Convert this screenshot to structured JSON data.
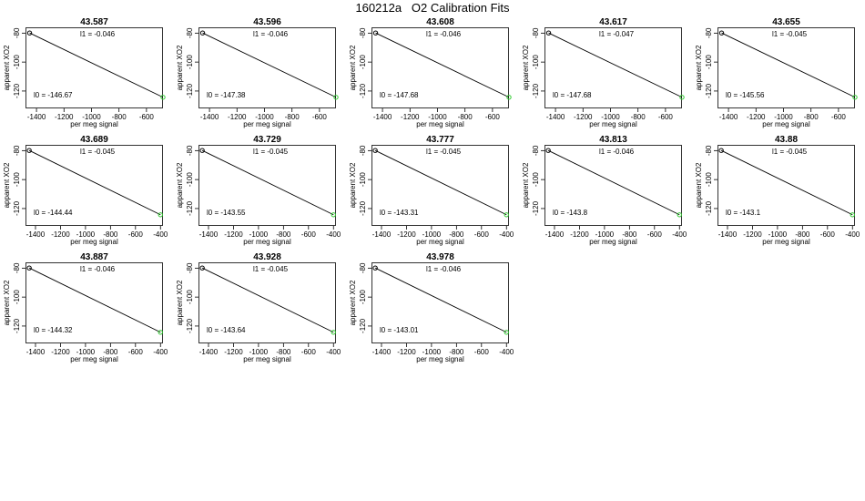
{
  "figure": {
    "title": "160212a   O2 Calibration Fits"
  },
  "chart_data": [
    {
      "type": "scatter",
      "title": "43.587",
      "xlabel": "per meg signal",
      "ylabel": "apparent XO2",
      "xlim": [
        -1480,
        -480
      ],
      "ylim": [
        -132,
        -76
      ],
      "xticks": [
        -1400,
        -1200,
        -1000,
        -800,
        -600
      ],
      "yticks": [
        -80,
        -100,
        -120
      ],
      "points": [
        {
          "x": -1450,
          "y": -79.9,
          "color": "#000000"
        },
        {
          "x": -480,
          "y": -124.3,
          "color": "#33cc33"
        }
      ],
      "fit_line": {
        "x": [
          -1450,
          -480
        ],
        "y": [
          -79.9,
          -124.3
        ]
      },
      "annotations": {
        "l1": "l1 =  -0.046",
        "l0": "l0 =  -146.67"
      }
    },
    {
      "type": "scatter",
      "title": "43.596",
      "xlabel": "per meg signal",
      "ylabel": "apparent XO2",
      "xlim": [
        -1480,
        -480
      ],
      "ylim": [
        -132,
        -76
      ],
      "xticks": [
        -1400,
        -1200,
        -1000,
        -800,
        -600
      ],
      "yticks": [
        -80,
        -100,
        -120
      ],
      "points": [
        {
          "x": -1450,
          "y": -79.9,
          "color": "#000000"
        },
        {
          "x": -480,
          "y": -124.3,
          "color": "#33cc33"
        }
      ],
      "fit_line": {
        "x": [
          -1450,
          -480
        ],
        "y": [
          -79.9,
          -124.3
        ]
      },
      "annotations": {
        "l1": "l1 =  -0.046",
        "l0": "l0 =  -147.38"
      }
    },
    {
      "type": "scatter",
      "title": "43.608",
      "xlabel": "per meg signal",
      "ylabel": "apparent XO2",
      "xlim": [
        -1480,
        -480
      ],
      "ylim": [
        -132,
        -76
      ],
      "xticks": [
        -1400,
        -1200,
        -1000,
        -800,
        -600
      ],
      "yticks": [
        -80,
        -100,
        -120
      ],
      "points": [
        {
          "x": -1450,
          "y": -79.9,
          "color": "#000000"
        },
        {
          "x": -480,
          "y": -124.3,
          "color": "#33cc33"
        }
      ],
      "fit_line": {
        "x": [
          -1450,
          -480
        ],
        "y": [
          -79.9,
          -124.3
        ]
      },
      "annotations": {
        "l1": "l1 =  -0.046",
        "l0": "l0 =  -147.68"
      }
    },
    {
      "type": "scatter",
      "title": "43.617",
      "xlabel": "per meg signal",
      "ylabel": "apparent XO2",
      "xlim": [
        -1480,
        -480
      ],
      "ylim": [
        -132,
        -76
      ],
      "xticks": [
        -1400,
        -1200,
        -1000,
        -800,
        -600
      ],
      "yticks": [
        -80,
        -100,
        -120
      ],
      "points": [
        {
          "x": -1450,
          "y": -79.9,
          "color": "#000000"
        },
        {
          "x": -480,
          "y": -124.3,
          "color": "#33cc33"
        }
      ],
      "fit_line": {
        "x": [
          -1450,
          -480
        ],
        "y": [
          -79.9,
          -124.3
        ]
      },
      "annotations": {
        "l1": "l1 =  -0.047",
        "l0": "l0 =  -147.68"
      }
    },
    {
      "type": "scatter",
      "title": "43.655",
      "xlabel": "per meg signal",
      "ylabel": "apparent XO2",
      "xlim": [
        -1480,
        -480
      ],
      "ylim": [
        -132,
        -76
      ],
      "xticks": [
        -1400,
        -1200,
        -1000,
        -800,
        -600
      ],
      "yticks": [
        -80,
        -100,
        -120
      ],
      "points": [
        {
          "x": -1450,
          "y": -79.9,
          "color": "#000000"
        },
        {
          "x": -480,
          "y": -124.3,
          "color": "#33cc33"
        }
      ],
      "fit_line": {
        "x": [
          -1450,
          -480
        ],
        "y": [
          -79.9,
          -124.3
        ]
      },
      "annotations": {
        "l1": "l1 =  -0.045",
        "l0": "l0 =  -145.56"
      }
    },
    {
      "type": "scatter",
      "title": "43.689",
      "xlabel": "per meg signal",
      "ylabel": "apparent XO2",
      "xlim": [
        -1480,
        -380
      ],
      "ylim": [
        -132,
        -76
      ],
      "xticks": [
        -1400,
        -1200,
        -1000,
        -800,
        -600,
        -400
      ],
      "yticks": [
        -80,
        -100,
        -120
      ],
      "points": [
        {
          "x": -1450,
          "y": -79.9,
          "color": "#000000"
        },
        {
          "x": -400,
          "y": -124.3,
          "color": "#33cc33"
        }
      ],
      "fit_line": {
        "x": [
          -1450,
          -400
        ],
        "y": [
          -79.9,
          -124.3
        ]
      },
      "annotations": {
        "l1": "l1 =  -0.045",
        "l0": "l0 =  -144.44"
      }
    },
    {
      "type": "scatter",
      "title": "43.729",
      "xlabel": "per meg signal",
      "ylabel": "apparent XO2",
      "xlim": [
        -1480,
        -380
      ],
      "ylim": [
        -132,
        -76
      ],
      "xticks": [
        -1400,
        -1200,
        -1000,
        -800,
        -600,
        -400
      ],
      "yticks": [
        -80,
        -100,
        -120
      ],
      "points": [
        {
          "x": -1450,
          "y": -79.9,
          "color": "#000000"
        },
        {
          "x": -400,
          "y": -124.3,
          "color": "#33cc33"
        }
      ],
      "fit_line": {
        "x": [
          -1450,
          -400
        ],
        "y": [
          -79.9,
          -124.3
        ]
      },
      "annotations": {
        "l1": "l1 =  -0.045",
        "l0": "l0 =  -143.55"
      }
    },
    {
      "type": "scatter",
      "title": "43.777",
      "xlabel": "per meg signal",
      "ylabel": "apparent XO2",
      "xlim": [
        -1480,
        -380
      ],
      "ylim": [
        -132,
        -76
      ],
      "xticks": [
        -1400,
        -1200,
        -1000,
        -800,
        -600,
        -400
      ],
      "yticks": [
        -80,
        -100,
        -120
      ],
      "points": [
        {
          "x": -1450,
          "y": -79.9,
          "color": "#000000"
        },
        {
          "x": -400,
          "y": -124.3,
          "color": "#33cc33"
        }
      ],
      "fit_line": {
        "x": [
          -1450,
          -400
        ],
        "y": [
          -79.9,
          -124.3
        ]
      },
      "annotations": {
        "l1": "l1 =  -0.045",
        "l0": "l0 =  -143.31"
      }
    },
    {
      "type": "scatter",
      "title": "43.813",
      "xlabel": "per meg signal",
      "ylabel": "apparent XO2",
      "xlim": [
        -1480,
        -380
      ],
      "ylim": [
        -132,
        -76
      ],
      "xticks": [
        -1400,
        -1200,
        -1000,
        -800,
        -600,
        -400
      ],
      "yticks": [
        -80,
        -100,
        -120
      ],
      "points": [
        {
          "x": -1450,
          "y": -79.9,
          "color": "#000000"
        },
        {
          "x": -400,
          "y": -124.3,
          "color": "#33cc33"
        }
      ],
      "fit_line": {
        "x": [
          -1450,
          -400
        ],
        "y": [
          -79.9,
          -124.3
        ]
      },
      "annotations": {
        "l1": "l1 =  -0.046",
        "l0": "l0 =  -143.8"
      }
    },
    {
      "type": "scatter",
      "title": "43.88",
      "xlabel": "per meg signal",
      "ylabel": "apparent XO2",
      "xlim": [
        -1480,
        -380
      ],
      "ylim": [
        -132,
        -76
      ],
      "xticks": [
        -1400,
        -1200,
        -1000,
        -800,
        -600,
        -400
      ],
      "yticks": [
        -80,
        -100,
        -120
      ],
      "points": [
        {
          "x": -1450,
          "y": -79.9,
          "color": "#000000"
        },
        {
          "x": -400,
          "y": -124.3,
          "color": "#33cc33"
        }
      ],
      "fit_line": {
        "x": [
          -1450,
          -400
        ],
        "y": [
          -79.9,
          -124.3
        ]
      },
      "annotations": {
        "l1": "l1 =  -0.045",
        "l0": "l0 =  -143.1"
      }
    },
    {
      "type": "scatter",
      "title": "43.887",
      "xlabel": "per meg signal",
      "ylabel": "apparent XO2",
      "xlim": [
        -1480,
        -380
      ],
      "ylim": [
        -132,
        -76
      ],
      "xticks": [
        -1400,
        -1200,
        -1000,
        -800,
        -600,
        -400
      ],
      "yticks": [
        -80,
        -100,
        -120
      ],
      "points": [
        {
          "x": -1450,
          "y": -79.9,
          "color": "#000000"
        },
        {
          "x": -400,
          "y": -124.3,
          "color": "#33cc33"
        }
      ],
      "fit_line": {
        "x": [
          -1450,
          -400
        ],
        "y": [
          -79.9,
          -124.3
        ]
      },
      "annotations": {
        "l1": "l1 =  -0.046",
        "l0": "l0 =  -144.32"
      }
    },
    {
      "type": "scatter",
      "title": "43.928",
      "xlabel": "per meg signal",
      "ylabel": "apparent XO2",
      "xlim": [
        -1480,
        -380
      ],
      "ylim": [
        -132,
        -76
      ],
      "xticks": [
        -1400,
        -1200,
        -1000,
        -800,
        -600,
        -400
      ],
      "yticks": [
        -80,
        -100,
        -120
      ],
      "points": [
        {
          "x": -1450,
          "y": -79.9,
          "color": "#000000"
        },
        {
          "x": -400,
          "y": -124.3,
          "color": "#33cc33"
        }
      ],
      "fit_line": {
        "x": [
          -1450,
          -400
        ],
        "y": [
          -79.9,
          -124.3
        ]
      },
      "annotations": {
        "l1": "l1 =  -0.045",
        "l0": "l0 =  -143.64"
      }
    },
    {
      "type": "scatter",
      "title": "43.978",
      "xlabel": "per meg signal",
      "ylabel": "apparent XO2",
      "xlim": [
        -1480,
        -380
      ],
      "ylim": [
        -132,
        -76
      ],
      "xticks": [
        -1400,
        -1200,
        -1000,
        -800,
        -600,
        -400
      ],
      "yticks": [
        -80,
        -100,
        -120
      ],
      "points": [
        {
          "x": -1450,
          "y": -79.9,
          "color": "#000000"
        },
        {
          "x": -400,
          "y": -124.3,
          "color": "#33cc33"
        }
      ],
      "fit_line": {
        "x": [
          -1450,
          -400
        ],
        "y": [
          -79.9,
          -124.3
        ]
      },
      "annotations": {
        "l1": "l1 =  -0.046",
        "l0": "l0 =  -143.01"
      }
    }
  ]
}
